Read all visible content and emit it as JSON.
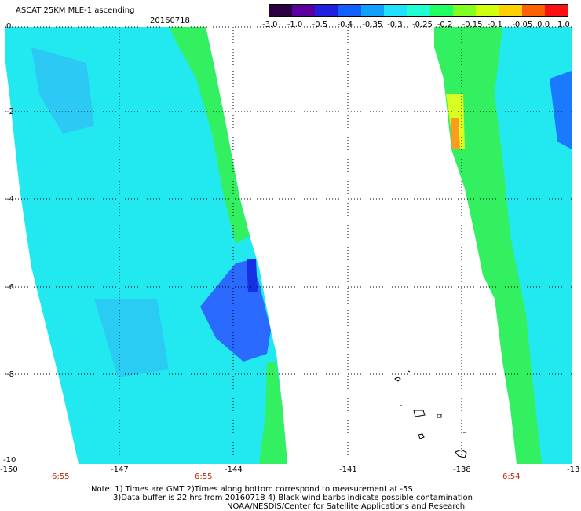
{
  "title": "ASCAT 25KM MLE-1 ascending",
  "date": "20160718",
  "colorbar": {
    "labels": [
      "-3.0",
      "-1.0",
      "-0.5",
      "-0.4",
      "-0.35",
      "-0.3",
      "-0.25",
      "-0.2",
      "-0.15",
      "-0.1",
      "-0.05",
      "0.0",
      "1.0"
    ],
    "colors": [
      "#2a0040",
      "#5a00a0",
      "#2020e0",
      "#1060ff",
      "#10a0ff",
      "#20e0ff",
      "#20ffd0",
      "#20ff60",
      "#80ff20",
      "#d0ff10",
      "#ffd000",
      "#ff6000",
      "#ff1010"
    ]
  },
  "axes": {
    "x_ticks": [
      "-150",
      "-147",
      "-144",
      "-141",
      "-138",
      "-13"
    ],
    "y_ticks": [
      "0",
      "-2",
      "-4",
      "-6",
      "-8",
      "-10"
    ]
  },
  "pass_times": [
    "6:55",
    "6:55",
    "6:54"
  ],
  "notes": {
    "line1": "Note: 1) Times are GMT 2)Times along bottom correspond to measurement at -5S",
    "line2": "3)Data buffer is 22 hrs from 20160718 4) Black wind barbs indicate possible contamination",
    "line3": "NOAA/NESDIS/Center for Satellite Applications and Research"
  }
}
